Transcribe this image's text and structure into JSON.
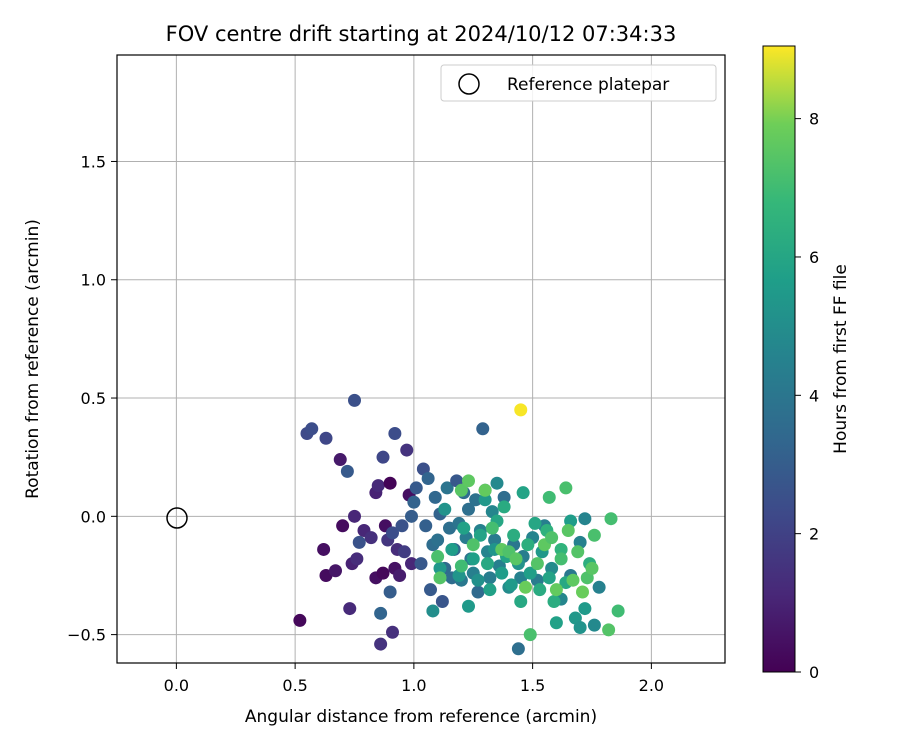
{
  "chart_data": {
    "type": "scatter",
    "title": "FOV centre drift starting at 2024/10/12 07:34:33",
    "xlabel": "Angular distance from reference (arcmin)",
    "ylabel": "Rotation from reference (arcmin)",
    "xlim": [
      -0.25,
      2.31
    ],
    "ylim": [
      -0.62,
      1.95
    ],
    "xticks": [
      0.0,
      0.5,
      1.0,
      1.5,
      2.0
    ],
    "xtick_labels": [
      "0.0",
      "0.5",
      "1.0",
      "1.5",
      "2.0"
    ],
    "yticks": [
      -0.5,
      0.0,
      0.5,
      1.0,
      1.5
    ],
    "ytick_labels": [
      "−0.5",
      "0.0",
      "0.5",
      "1.0",
      "1.5"
    ],
    "grid": true,
    "legend": {
      "position": "top-right",
      "entries": [
        {
          "label": "Reference platepar",
          "marker": "open-circle"
        }
      ]
    },
    "reference_point": {
      "x": 0.0,
      "y": 0.0
    },
    "colorbar": {
      "label": "Hours from first FF file",
      "min": 0,
      "max": 9.05,
      "ticks": [
        0,
        2,
        4,
        6,
        8
      ],
      "tick_labels": [
        "0",
        "2",
        "4",
        "6",
        "8"
      ],
      "colormap": "viridis"
    },
    "points": [
      {
        "x": 0.52,
        "y": -0.44,
        "t": 0.2
      },
      {
        "x": 0.62,
        "y": -0.14,
        "t": 0.4
      },
      {
        "x": 0.63,
        "y": -0.25,
        "t": 0.3
      },
      {
        "x": 0.67,
        "y": -0.23,
        "t": 0.6
      },
      {
        "x": 0.69,
        "y": 0.24,
        "t": 0.7
      },
      {
        "x": 0.7,
        "y": -0.04,
        "t": 0.3
      },
      {
        "x": 0.73,
        "y": -0.39,
        "t": 1.2
      },
      {
        "x": 0.74,
        "y": -0.2,
        "t": 1.0
      },
      {
        "x": 0.75,
        "y": 0.0,
        "t": 1.1
      },
      {
        "x": 0.76,
        "y": -0.18,
        "t": 1.3
      },
      {
        "x": 0.79,
        "y": -0.06,
        "t": 1.1
      },
      {
        "x": 0.82,
        "y": -0.09,
        "t": 1.4
      },
      {
        "x": 0.84,
        "y": -0.26,
        "t": 0.4
      },
      {
        "x": 0.84,
        "y": 0.1,
        "t": 1.0
      },
      {
        "x": 0.85,
        "y": 0.13,
        "t": 1.2
      },
      {
        "x": 0.86,
        "y": -0.54,
        "t": 1.5
      },
      {
        "x": 0.87,
        "y": -0.24,
        "t": 0.2
      },
      {
        "x": 0.88,
        "y": -0.04,
        "t": 0.4
      },
      {
        "x": 0.89,
        "y": -0.1,
        "t": 1.6
      },
      {
        "x": 0.9,
        "y": 0.14,
        "t": 0.1
      },
      {
        "x": 0.91,
        "y": -0.49,
        "t": 1.4
      },
      {
        "x": 0.92,
        "y": -0.22,
        "t": 0.5
      },
      {
        "x": 0.93,
        "y": -0.14,
        "t": 1.3
      },
      {
        "x": 0.94,
        "y": -0.25,
        "t": 0.8
      },
      {
        "x": 0.96,
        "y": -0.15,
        "t": 1.8
      },
      {
        "x": 0.97,
        "y": 0.28,
        "t": 1.5
      },
      {
        "x": 0.98,
        "y": 0.09,
        "t": 0.4
      },
      {
        "x": 0.99,
        "y": -0.2,
        "t": 1.1
      },
      {
        "x": 0.55,
        "y": 0.35,
        "t": 2.3
      },
      {
        "x": 0.57,
        "y": 0.37,
        "t": 2.4
      },
      {
        "x": 0.63,
        "y": 0.33,
        "t": 2.2
      },
      {
        "x": 0.72,
        "y": 0.19,
        "t": 2.9
      },
      {
        "x": 0.75,
        "y": 0.49,
        "t": 2.5
      },
      {
        "x": 0.77,
        "y": -0.11,
        "t": 2.6
      },
      {
        "x": 0.86,
        "y": -0.41,
        "t": 3.3
      },
      {
        "x": 0.87,
        "y": 0.25,
        "t": 2.2
      },
      {
        "x": 0.9,
        "y": -0.32,
        "t": 3.0
      },
      {
        "x": 0.91,
        "y": -0.07,
        "t": 2.4
      },
      {
        "x": 0.92,
        "y": 0.35,
        "t": 2.4
      },
      {
        "x": 0.95,
        "y": -0.04,
        "t": 2.6
      },
      {
        "x": 0.99,
        "y": 0.0,
        "t": 3.0
      },
      {
        "x": 1.0,
        "y": 0.06,
        "t": 3.2
      },
      {
        "x": 1.01,
        "y": 0.12,
        "t": 2.9
      },
      {
        "x": 1.03,
        "y": -0.2,
        "t": 2.8
      },
      {
        "x": 1.04,
        "y": 0.2,
        "t": 2.5
      },
      {
        "x": 1.05,
        "y": -0.04,
        "t": 3.1
      },
      {
        "x": 1.06,
        "y": 0.16,
        "t": 3.3
      },
      {
        "x": 1.07,
        "y": -0.31,
        "t": 2.9
      },
      {
        "x": 1.08,
        "y": -0.12,
        "t": 3.6
      },
      {
        "x": 1.09,
        "y": 0.08,
        "t": 3.4
      },
      {
        "x": 1.1,
        "y": -0.1,
        "t": 3.8
      },
      {
        "x": 1.11,
        "y": 0.01,
        "t": 3.2
      },
      {
        "x": 1.12,
        "y": -0.36,
        "t": 2.7
      },
      {
        "x": 1.13,
        "y": -0.22,
        "t": 3.5
      },
      {
        "x": 1.14,
        "y": 0.12,
        "t": 3.9
      },
      {
        "x": 1.15,
        "y": -0.05,
        "t": 3.7
      },
      {
        "x": 1.16,
        "y": -0.26,
        "t": 3.6
      },
      {
        "x": 1.17,
        "y": -0.14,
        "t": 3.4
      },
      {
        "x": 1.18,
        "y": 0.15,
        "t": 2.8
      },
      {
        "x": 1.19,
        "y": -0.03,
        "t": 3.9
      },
      {
        "x": 1.2,
        "y": -0.27,
        "t": 4.1
      },
      {
        "x": 1.21,
        "y": 0.1,
        "t": 3.6
      },
      {
        "x": 1.22,
        "y": -0.09,
        "t": 4.2
      },
      {
        "x": 1.23,
        "y": 0.03,
        "t": 3.7
      },
      {
        "x": 1.24,
        "y": -0.18,
        "t": 4.0
      },
      {
        "x": 1.25,
        "y": -0.24,
        "t": 4.4
      },
      {
        "x": 1.26,
        "y": 0.07,
        "t": 3.8
      },
      {
        "x": 1.27,
        "y": -0.32,
        "t": 3.5
      },
      {
        "x": 1.28,
        "y": -0.06,
        "t": 4.5
      },
      {
        "x": 1.29,
        "y": 0.37,
        "t": 3.2
      },
      {
        "x": 1.3,
        "y": 0.11,
        "t": 4.1
      },
      {
        "x": 1.31,
        "y": -0.15,
        "t": 4.6
      },
      {
        "x": 1.32,
        "y": -0.26,
        "t": 4.3
      },
      {
        "x": 1.33,
        "y": 0.02,
        "t": 4.7
      },
      {
        "x": 1.34,
        "y": -0.1,
        "t": 4.2
      },
      {
        "x": 1.35,
        "y": 0.14,
        "t": 4.8
      },
      {
        "x": 1.36,
        "y": -0.21,
        "t": 4.4
      },
      {
        "x": 1.38,
        "y": 0.08,
        "t": 3.6
      },
      {
        "x": 1.4,
        "y": -0.3,
        "t": 4.9
      },
      {
        "x": 1.42,
        "y": -0.12,
        "t": 4.0
      },
      {
        "x": 1.44,
        "y": -0.56,
        "t": 3.7
      },
      {
        "x": 1.45,
        "y": -0.26,
        "t": 4.5
      },
      {
        "x": 1.46,
        "y": -0.17,
        "t": 4.3
      },
      {
        "x": 1.5,
        "y": -0.09,
        "t": 4.6
      },
      {
        "x": 1.52,
        "y": -0.27,
        "t": 4.2
      },
      {
        "x": 1.55,
        "y": -0.04,
        "t": 4.4
      },
      {
        "x": 1.58,
        "y": -0.22,
        "t": 4.9
      },
      {
        "x": 1.62,
        "y": -0.35,
        "t": 4.7
      },
      {
        "x": 1.66,
        "y": -0.25,
        "t": 4.1
      },
      {
        "x": 1.7,
        "y": -0.11,
        "t": 4.5
      },
      {
        "x": 1.72,
        "y": -0.01,
        "t": 4.6
      },
      {
        "x": 1.78,
        "y": -0.3,
        "t": 4.5
      },
      {
        "x": 1.76,
        "y": -0.46,
        "t": 4.8
      },
      {
        "x": 1.08,
        "y": -0.4,
        "t": 5.0
      },
      {
        "x": 1.11,
        "y": -0.22,
        "t": 5.4
      },
      {
        "x": 1.13,
        "y": 0.03,
        "t": 5.2
      },
      {
        "x": 1.16,
        "y": -0.14,
        "t": 5.6
      },
      {
        "x": 1.19,
        "y": -0.25,
        "t": 5.3
      },
      {
        "x": 1.21,
        "y": -0.05,
        "t": 5.8
      },
      {
        "x": 1.23,
        "y": -0.38,
        "t": 5.5
      },
      {
        "x": 1.25,
        "y": -0.18,
        "t": 5.7
      },
      {
        "x": 1.27,
        "y": -0.27,
        "t": 5.1
      },
      {
        "x": 1.28,
        "y": -0.08,
        "t": 5.9
      },
      {
        "x": 1.3,
        "y": 0.07,
        "t": 5.4
      },
      {
        "x": 1.31,
        "y": -0.2,
        "t": 6.1
      },
      {
        "x": 1.32,
        "y": -0.31,
        "t": 5.8
      },
      {
        "x": 1.34,
        "y": -0.14,
        "t": 5.3
      },
      {
        "x": 1.35,
        "y": -0.02,
        "t": 6.0
      },
      {
        "x": 1.37,
        "y": -0.24,
        "t": 5.6
      },
      {
        "x": 1.38,
        "y": 0.04,
        "t": 6.2
      },
      {
        "x": 1.39,
        "y": -0.17,
        "t": 5.9
      },
      {
        "x": 1.41,
        "y": -0.29,
        "t": 5.5
      },
      {
        "x": 1.42,
        "y": -0.08,
        "t": 6.3
      },
      {
        "x": 1.44,
        "y": -0.2,
        "t": 5.2
      },
      {
        "x": 1.45,
        "y": -0.36,
        "t": 6.1
      },
      {
        "x": 1.46,
        "y": 0.1,
        "t": 5.9
      },
      {
        "x": 1.48,
        "y": -0.12,
        "t": 6.4
      },
      {
        "x": 1.49,
        "y": -0.24,
        "t": 5.7
      },
      {
        "x": 1.51,
        "y": -0.03,
        "t": 6.0
      },
      {
        "x": 1.53,
        "y": -0.31,
        "t": 6.2
      },
      {
        "x": 1.54,
        "y": -0.15,
        "t": 5.4
      },
      {
        "x": 1.56,
        "y": -0.06,
        "t": 6.5
      },
      {
        "x": 1.57,
        "y": -0.26,
        "t": 5.9
      },
      {
        "x": 1.59,
        "y": -0.36,
        "t": 6.3
      },
      {
        "x": 1.6,
        "y": -0.45,
        "t": 5.8
      },
      {
        "x": 1.62,
        "y": -0.14,
        "t": 6.6
      },
      {
        "x": 1.64,
        "y": -0.28,
        "t": 6.1
      },
      {
        "x": 1.66,
        "y": -0.02,
        "t": 5.6
      },
      {
        "x": 1.68,
        "y": -0.43,
        "t": 5.4
      },
      {
        "x": 1.7,
        "y": -0.47,
        "t": 5.2
      },
      {
        "x": 1.72,
        "y": -0.39,
        "t": 5.5
      },
      {
        "x": 1.74,
        "y": -0.2,
        "t": 6.4
      },
      {
        "x": 1.1,
        "y": -0.17,
        "t": 7.2
      },
      {
        "x": 1.11,
        "y": -0.26,
        "t": 7.4
      },
      {
        "x": 1.2,
        "y": -0.21,
        "t": 7.0
      },
      {
        "x": 1.2,
        "y": 0.11,
        "t": 7.5
      },
      {
        "x": 1.23,
        "y": 0.15,
        "t": 7.6
      },
      {
        "x": 1.25,
        "y": -0.12,
        "t": 7.3
      },
      {
        "x": 1.3,
        "y": 0.11,
        "t": 7.7
      },
      {
        "x": 1.33,
        "y": -0.05,
        "t": 7.1
      },
      {
        "x": 1.37,
        "y": -0.14,
        "t": 7.6
      },
      {
        "x": 1.4,
        "y": -0.15,
        "t": 7.3
      },
      {
        "x": 1.43,
        "y": -0.18,
        "t": 7.5
      },
      {
        "x": 1.47,
        "y": -0.3,
        "t": 7.8
      },
      {
        "x": 1.49,
        "y": -0.5,
        "t": 7.2
      },
      {
        "x": 1.52,
        "y": -0.2,
        "t": 7.4
      },
      {
        "x": 1.55,
        "y": -0.12,
        "t": 7.6
      },
      {
        "x": 1.57,
        "y": 0.08,
        "t": 7.0
      },
      {
        "x": 1.58,
        "y": -0.09,
        "t": 7.3
      },
      {
        "x": 1.6,
        "y": -0.31,
        "t": 7.7
      },
      {
        "x": 1.62,
        "y": -0.18,
        "t": 7.1
      },
      {
        "x": 1.64,
        "y": 0.12,
        "t": 7.2
      },
      {
        "x": 1.65,
        "y": -0.06,
        "t": 7.5
      },
      {
        "x": 1.67,
        "y": -0.27,
        "t": 7.6
      },
      {
        "x": 1.69,
        "y": -0.15,
        "t": 7.4
      },
      {
        "x": 1.71,
        "y": -0.32,
        "t": 7.8
      },
      {
        "x": 1.73,
        "y": -0.26,
        "t": 7.3
      },
      {
        "x": 1.75,
        "y": -0.22,
        "t": 7.5
      },
      {
        "x": 1.76,
        "y": -0.08,
        "t": 7.2
      },
      {
        "x": 1.82,
        "y": -0.48,
        "t": 7.4
      },
      {
        "x": 1.83,
        "y": -0.01,
        "t": 7.1
      },
      {
        "x": 1.86,
        "y": -0.4,
        "t": 7.0
      },
      {
        "x": 1.45,
        "y": 0.45,
        "t": 9.0
      }
    ]
  }
}
